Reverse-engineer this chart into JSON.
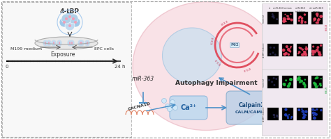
{
  "bg_color": "#ffffff",
  "border_color": "#aaaaaa",
  "left_panel": {
    "bg": "#f5f5f5",
    "label_4tBP": "4-tBP",
    "label_medium": "M199 medium",
    "label_cells": "EPC cells",
    "label_exposure": "Exposure",
    "label_0": "0",
    "label_24h": "24 h"
  },
  "center_panel": {
    "cell_outer_color": "#f2c0c8",
    "cell_inner_color": "#d8eaf5",
    "nucleus_color": "#c8dff0",
    "autophagy_text": "Autophagy Impairment",
    "ca2plus_text": "Ca²⁺",
    "calpain_text": "Calpain2\nCALM/CAMKII",
    "miR363_text": "miR-363",
    "CACNA1D_text": "CACNA1D",
    "lc3_color": "#e05060",
    "p62_color": "#8cb8d0"
  },
  "right_panel": {
    "bg": "#f8f0f4",
    "rows": [
      "Control",
      "4-tBP-Induce",
      "Control",
      "4-tBP-Induce"
    ],
    "top_labels": [
      "si",
      "miR-363 mimic",
      "miR-363 inhibitor",
      "si+miR-363 mimic"
    ]
  },
  "arrow_color": "#4a90c8",
  "inhibit_color": "#4a90c8"
}
